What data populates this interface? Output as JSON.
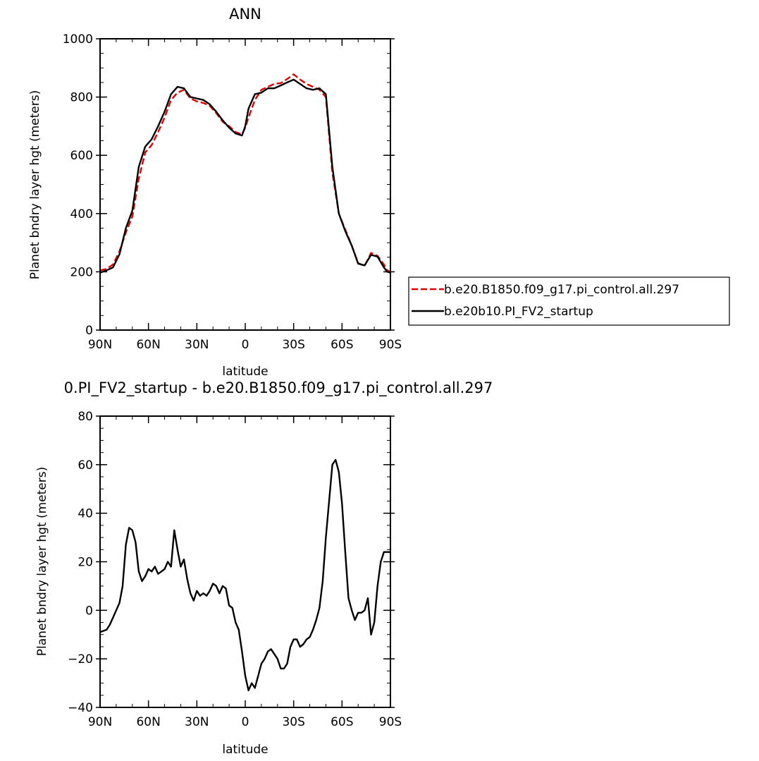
{
  "chart_data": [
    {
      "type": "line",
      "title": "ANN",
      "xlabel": "latitude",
      "ylabel": "Planet bndry layer hgt (meters)",
      "x_tick_labels": [
        "90N",
        "60N",
        "30N",
        "0",
        "30S",
        "60S",
        "90S"
      ],
      "x_tick_values": [
        90,
        60,
        30,
        0,
        -30,
        -60,
        -90
      ],
      "xlim": [
        90,
        -90
      ],
      "ylim": [
        0,
        1000
      ],
      "y_tick_labels": [
        "0",
        "200",
        "400",
        "600",
        "800",
        "1000"
      ],
      "y_tick_values": [
        0,
        200,
        400,
        600,
        800,
        1000
      ],
      "legend_position": "right",
      "series": [
        {
          "name": "b.e20.B1850.f09_g17.pi_control.all.297",
          "color": "#e00000",
          "dash": "dashed",
          "x": [
            90,
            86,
            82,
            78,
            74,
            70,
            66,
            62,
            58,
            54,
            50,
            46,
            42,
            38,
            34,
            30,
            26,
            22,
            18,
            14,
            10,
            6,
            2,
            0,
            -2,
            -6,
            -10,
            -14,
            -18,
            -22,
            -26,
            -30,
            -34,
            -38,
            -42,
            -46,
            -50,
            -54,
            -58,
            -62,
            -66,
            -70,
            -74,
            -78,
            -82,
            -86,
            -88,
            -90
          ],
          "y": [
            205,
            210,
            225,
            270,
            335,
            390,
            520,
            610,
            635,
            680,
            730,
            790,
            815,
            825,
            795,
            785,
            780,
            770,
            745,
            715,
            700,
            680,
            672,
            695,
            730,
            790,
            825,
            835,
            845,
            848,
            862,
            878,
            860,
            845,
            835,
            825,
            800,
            540,
            400,
            345,
            290,
            230,
            220,
            265,
            255,
            225,
            205,
            200
          ]
        },
        {
          "name": "b.e20b10.PI_FV2_startup",
          "color": "#000000",
          "dash": "solid",
          "x": [
            90,
            86,
            82,
            78,
            74,
            70,
            66,
            62,
            58,
            54,
            50,
            46,
            42,
            38,
            34,
            30,
            26,
            22,
            18,
            14,
            10,
            6,
            2,
            0,
            -2,
            -6,
            -10,
            -14,
            -18,
            -22,
            -26,
            -30,
            -34,
            -38,
            -42,
            -46,
            -50,
            -54,
            -58,
            -62,
            -66,
            -70,
            -74,
            -78,
            -82,
            -86,
            -88,
            -90
          ],
          "y": [
            197,
            205,
            215,
            260,
            350,
            410,
            560,
            630,
            655,
            700,
            750,
            810,
            835,
            830,
            800,
            795,
            790,
            775,
            750,
            720,
            695,
            675,
            668,
            700,
            760,
            810,
            815,
            830,
            830,
            840,
            850,
            860,
            845,
            830,
            825,
            830,
            810,
            560,
            400,
            340,
            290,
            228,
            222,
            258,
            252,
            215,
            200,
            197
          ]
        }
      ]
    },
    {
      "type": "line",
      "title": "0.PI_FV2_startup - b.e20.B1850.f09_g17.pi_control.all.297",
      "xlabel": "latitude",
      "ylabel": "Planet bndry layer hgt (meters)",
      "x_tick_labels": [
        "90N",
        "60N",
        "30N",
        "0",
        "30S",
        "60S",
        "90S"
      ],
      "x_tick_values": [
        90,
        60,
        30,
        0,
        -30,
        -60,
        -90
      ],
      "xlim": [
        90,
        -90
      ],
      "ylim": [
        -40,
        80
      ],
      "y_tick_labels": [
        "−40",
        "−20",
        "0",
        "20",
        "40",
        "60",
        "80"
      ],
      "y_tick_values": [
        -40,
        -20,
        0,
        20,
        40,
        60,
        80
      ],
      "series": [
        {
          "color": "#000000",
          "dash": "solid",
          "x": [
            90,
            86,
            84,
            82,
            80,
            78,
            76,
            74,
            72,
            70,
            68,
            66,
            64,
            62,
            60,
            58,
            56,
            54,
            52,
            50,
            48,
            46,
            44,
            42,
            40,
            38,
            36,
            34,
            32,
            30,
            28,
            26,
            24,
            22,
            20,
            18,
            16,
            14,
            12,
            10,
            8,
            6,
            4,
            2,
            0,
            -2,
            -4,
            -6,
            -8,
            -10,
            -12,
            -14,
            -16,
            -18,
            -20,
            -22,
            -24,
            -26,
            -28,
            -30,
            -32,
            -34,
            -36,
            -38,
            -40,
            -42,
            -44,
            -46,
            -48,
            -50,
            -52,
            -54,
            -56,
            -58,
            -60,
            -62,
            -64,
            -66,
            -68,
            -70,
            -72,
            -74,
            -76,
            -78,
            -80,
            -82,
            -84,
            -86,
            -88,
            -90
          ],
          "y": [
            -9,
            -8,
            -6,
            -3,
            0,
            3,
            10,
            27,
            34,
            33,
            28,
            16,
            12,
            14,
            17,
            16,
            18,
            15,
            16,
            17,
            20,
            18,
            33,
            25,
            18,
            21,
            13,
            7,
            4,
            8,
            6,
            7,
            6,
            8,
            11,
            10,
            7,
            10,
            9,
            2,
            1,
            -5,
            -8,
            -17,
            -27,
            -33,
            -30,
            -32,
            -27,
            -22,
            -20,
            -17,
            -16,
            -18,
            -20,
            -24,
            -24,
            -22,
            -15,
            -12,
            -12,
            -15,
            -14,
            -12,
            -11,
            -8,
            -4,
            1,
            12,
            30,
            45,
            60,
            62,
            57,
            44,
            24,
            5,
            0,
            -4,
            -1,
            -1,
            0,
            5,
            -10,
            -5,
            10,
            20,
            24,
            24,
            24
          ]
        }
      ]
    }
  ]
}
